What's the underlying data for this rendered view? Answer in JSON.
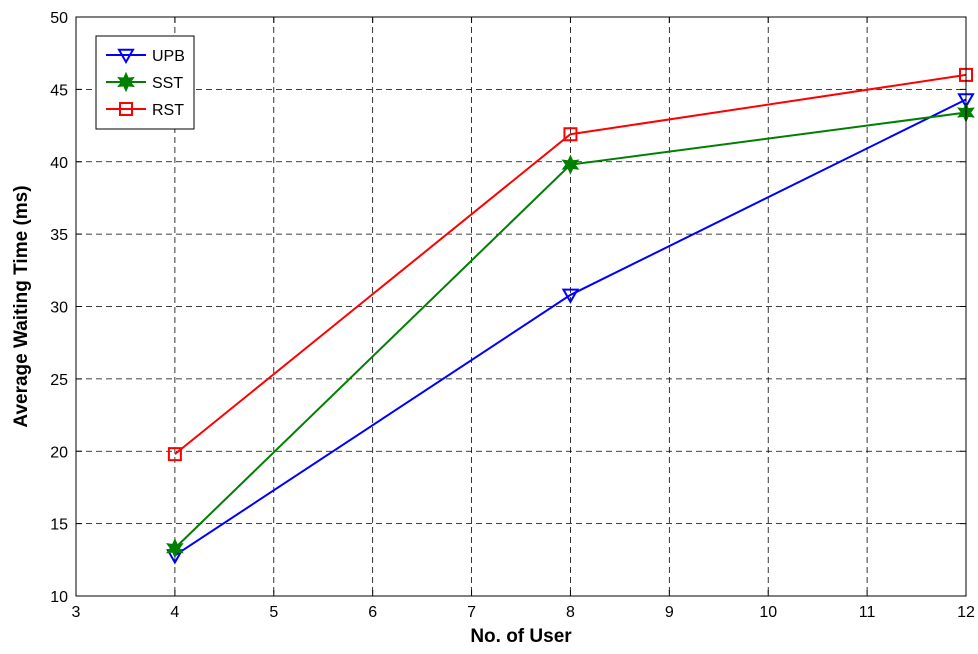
{
  "chart_data": {
    "type": "line",
    "title": "",
    "xlabel": "No. of User",
    "ylabel": "Average Waiting Time (ms)",
    "xlim": [
      3,
      12
    ],
    "ylim": [
      10,
      50
    ],
    "xticks": [
      3,
      4,
      5,
      6,
      7,
      8,
      9,
      10,
      11,
      12
    ],
    "yticks": [
      10,
      15,
      20,
      25,
      30,
      35,
      40,
      45,
      50
    ],
    "grid": true,
    "legend_position": "top-left",
    "x": [
      4,
      8,
      12
    ],
    "series": [
      {
        "name": "UPB",
        "values": [
          12.8,
          30.8,
          44.3
        ],
        "color": "#0000ff",
        "marker": "triangle-down"
      },
      {
        "name": "SST",
        "values": [
          13.3,
          39.8,
          43.4
        ],
        "color": "#008000",
        "marker": "hexagram"
      },
      {
        "name": "RST",
        "values": [
          19.8,
          41.9,
          46.0
        ],
        "color": "#ff0000",
        "marker": "square"
      }
    ]
  }
}
